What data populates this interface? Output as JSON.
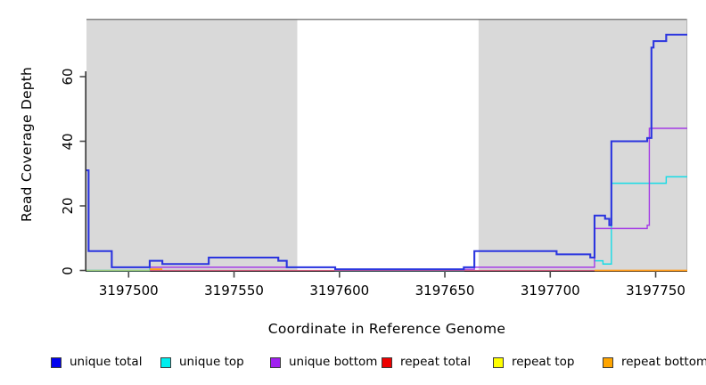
{
  "chart_data": {
    "type": "line",
    "step": true,
    "title": "",
    "xlabel": "Coordinate in Reference Genome",
    "ylabel": "Read Coverage Depth",
    "xlim": [
      3197480,
      3197765
    ],
    "ylim": [
      0,
      78
    ],
    "x_ticks": [
      3197500,
      3197550,
      3197600,
      3197650,
      3197700,
      3197750
    ],
    "x_tick_labels": [
      "3197500",
      "3197550",
      "3197600",
      "3197650",
      "3197700",
      "3197750"
    ],
    "y_ticks": [
      0,
      20,
      40,
      60
    ],
    "y_tick_labels": [
      "0",
      "20",
      "40",
      "60"
    ],
    "grid": false,
    "top_border_color": "#848484",
    "shaded_regions": [
      {
        "name": "left-gray-region",
        "x0": 3197480,
        "x1": 3197580,
        "color": "#d9d9d9"
      },
      {
        "name": "right-gray-region",
        "x0": 3197666,
        "x1": 3197765,
        "color": "#d9d9d9"
      }
    ],
    "series": [
      {
        "name": "unique total",
        "color": "#0000EE",
        "line_color": "#2B35DF",
        "width": 2.1,
        "z": 5,
        "zero_lift": true,
        "points": [
          [
            3197480,
            31
          ],
          [
            3197481,
            6
          ],
          [
            3197492,
            1
          ],
          [
            3197510,
            3
          ],
          [
            3197516,
            2
          ],
          [
            3197538,
            4
          ],
          [
            3197571,
            3
          ],
          [
            3197575,
            1
          ],
          [
            3197598,
            0
          ],
          [
            3197659,
            1
          ],
          [
            3197664,
            6
          ],
          [
            3197703,
            5
          ],
          [
            3197719,
            4
          ],
          [
            3197721,
            17
          ],
          [
            3197726,
            16
          ],
          [
            3197728,
            14
          ],
          [
            3197729,
            40
          ],
          [
            3197746,
            41
          ],
          [
            3197748,
            69
          ],
          [
            3197749,
            71
          ],
          [
            3197755,
            73
          ],
          [
            3197765,
            73
          ]
        ]
      },
      {
        "name": "unique top",
        "color": "#00EEEE",
        "line_color": "#16DCE6",
        "width": 1.4,
        "z": 0,
        "zero_lift": false,
        "points": [
          [
            3197480,
            0
          ],
          [
            3197510,
            3
          ],
          [
            3197516,
            2
          ],
          [
            3197538,
            4
          ],
          [
            3197571,
            3
          ],
          [
            3197575,
            1
          ],
          [
            3197598,
            0
          ],
          [
            3197659,
            1
          ],
          [
            3197664,
            6
          ],
          [
            3197703,
            5
          ],
          [
            3197719,
            4
          ],
          [
            3197721,
            3
          ],
          [
            3197725,
            2
          ],
          [
            3197729,
            27
          ],
          [
            3197755,
            29
          ],
          [
            3197765,
            29
          ]
        ]
      },
      {
        "name": "unique bottom",
        "color": "#A020F0",
        "line_color": "#A43BE6",
        "width": 1.4,
        "z": 1,
        "zero_lift": true,
        "points": [
          [
            3197480,
            31
          ],
          [
            3197481,
            6
          ],
          [
            3197492,
            1
          ],
          [
            3197516,
            1
          ],
          [
            3197598,
            0
          ],
          [
            3197664,
            1
          ],
          [
            3197721,
            13
          ],
          [
            3197746,
            14
          ],
          [
            3197747,
            44
          ],
          [
            3197765,
            44
          ]
        ]
      },
      {
        "name": "repeat total",
        "color": "#EE0000",
        "line_color": "#C85A78",
        "width": 1.3,
        "z": 2,
        "zero_lift": false,
        "points": [
          [
            3197510,
            0
          ],
          [
            3197721,
            null
          ]
        ]
      },
      {
        "name": "repeat top",
        "color": "#FFFF00",
        "line_color": "#9CC87E",
        "width": 1.4,
        "z": 3,
        "zero_lift": false,
        "points": [
          [
            3197480,
            0
          ],
          [
            3197510,
            null
          ]
        ]
      },
      {
        "name": "repeat bottom",
        "color": "#FFA500",
        "line_color": "#FF9D1E",
        "width": 1.8,
        "z": 4,
        "zero_lift": false,
        "points": [
          [
            3197510,
            0.4
          ],
          [
            3197516,
            null
          ],
          [
            3197721,
            0
          ],
          [
            3197765,
            0
          ]
        ]
      }
    ]
  },
  "legend": {
    "items": [
      {
        "label": "unique total",
        "color": "#0000EE"
      },
      {
        "label": "unique top",
        "color": "#00EEEE"
      },
      {
        "label": "unique bottom",
        "color": "#A020F0"
      },
      {
        "label": "repeat total",
        "color": "#EE0000"
      },
      {
        "label": "repeat top",
        "color": "#FFFF00"
      },
      {
        "label": "repeat bottom",
        "color": "#FFA500"
      }
    ]
  }
}
